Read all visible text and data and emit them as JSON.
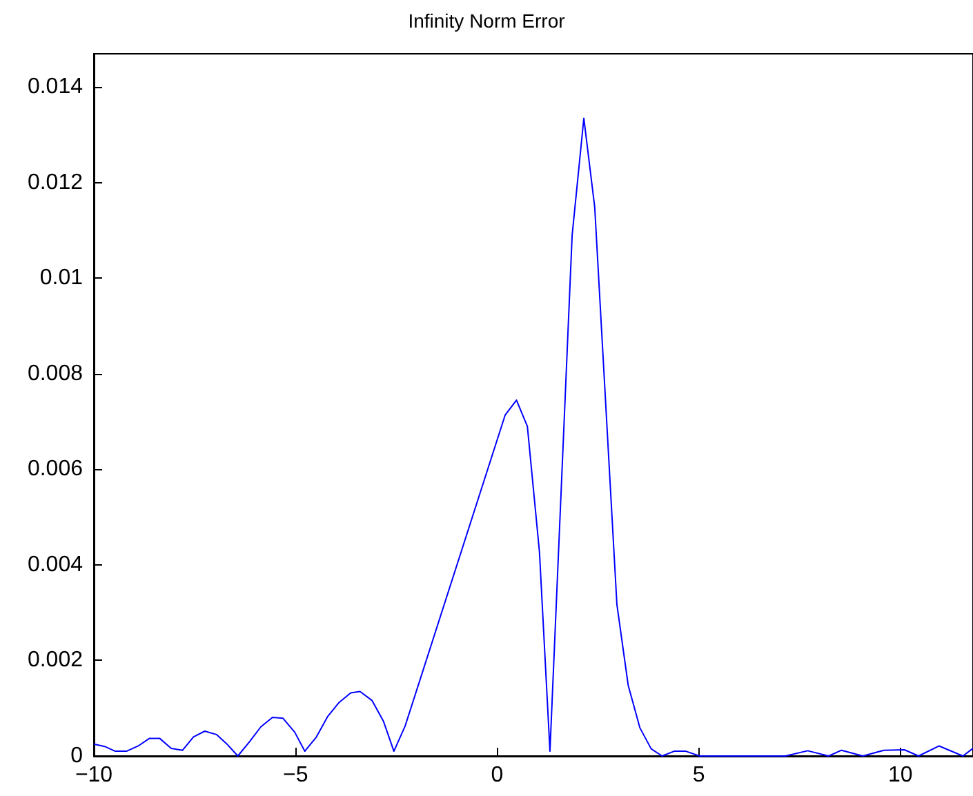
{
  "chart_data": {
    "type": "line",
    "title": "Infinity Norm Error",
    "x": [
      -10,
      -9.73,
      -9.47,
      -9.19,
      -8.9,
      -8.62,
      -8.37,
      -8.08,
      -7.8,
      -7.53,
      -7.25,
      -6.96,
      -6.7,
      -6.43,
      -6.13,
      -5.86,
      -5.57,
      -5.31,
      -5.02,
      -4.77,
      -4.48,
      -4.2,
      -3.92,
      -3.63,
      -3.4,
      -3.1,
      -2.82,
      -2.56,
      -2.28,
      0.2,
      0.48,
      0.75,
      1.05,
      1.31,
      1.86,
      2.15,
      2.42,
      2.97,
      3.25,
      3.54,
      3.82,
      4.09,
      4.39,
      4.68,
      5.02,
      6.6,
      7.15,
      7.7,
      8.22,
      8.54,
      9.07,
      9.59,
      10.1,
      10.45,
      10.96,
      11.55,
      11.8
    ],
    "series": [
      {
        "color": "#0000ff",
        "values": [
          0.00025,
          0.0002,
          0.0001,
          0.0001,
          0.00021,
          0.00037,
          0.00037,
          0.00016,
          0.00012,
          0.0004,
          0.00052,
          0.00045,
          0.00025,
          0,
          0.00031,
          0.00061,
          0.00081,
          0.00079,
          0.0005,
          0.0001,
          0.0004,
          0.00083,
          0.00112,
          0.00132,
          0.00135,
          0.00116,
          0.00073,
          0.0001,
          0.00063,
          0.00714,
          0.00745,
          0.0069,
          0.00427,
          0.0001,
          0.0109,
          0.01335,
          0.01149,
          0.00317,
          0.00148,
          0.00059,
          0.00015,
          0,
          0.0001,
          0.0001,
          0,
          0,
          0,
          0.00011,
          0,
          0.00012,
          0,
          0.00012,
          0.00013,
          0,
          0.00021,
          0,
          0.00016
        ]
      }
    ],
    "xlim": [
      -10,
      11.8
    ],
    "xticks": [
      {
        "value": -10,
        "label": "−10"
      },
      {
        "value": -5,
        "label": "−5"
      },
      0,
      5,
      10
    ],
    "ylim": [
      0,
      0.0147
    ],
    "yticks": [
      0,
      0.002,
      0.004,
      0.006,
      0.008,
      0.01,
      0.012,
      0.014
    ],
    "marker": "none",
    "line_style": "solid"
  }
}
